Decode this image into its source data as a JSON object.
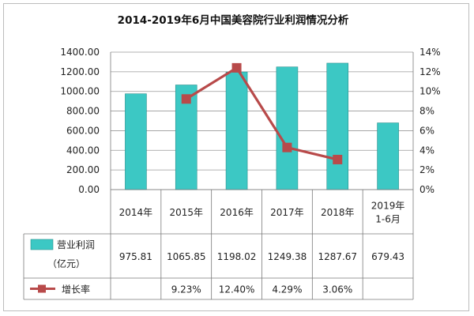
{
  "chart_data": {
    "type": "bar+line",
    "title": "2014-2019年6月中国美容院行业利润情况分析",
    "categories": [
      "2014年",
      "2015年",
      "2016年",
      "2017年",
      "2018年",
      "2019年 1-6月"
    ],
    "category_lines": [
      [
        "2014年"
      ],
      [
        "2015年"
      ],
      [
        "2016年"
      ],
      [
        "2017年"
      ],
      [
        "2018年"
      ],
      [
        "2019年",
        "1-6月"
      ]
    ],
    "series": [
      {
        "name": "营业利润（亿元）",
        "legend_lines": [
          "营业利润",
          "（亿元）"
        ],
        "type": "bar",
        "axis": "left",
        "color": "#3cc8c4",
        "values": [
          975.81,
          1065.85,
          1198.02,
          1249.38,
          1287.67,
          679.43
        ],
        "labels": [
          "975.81",
          "1065.85",
          "1198.02",
          "1249.38",
          "1287.67",
          "679.43"
        ]
      },
      {
        "name": "增长率",
        "legend_lines": [
          "增长率"
        ],
        "type": "line",
        "axis": "right",
        "color": "#b84a4a",
        "values": [
          null,
          9.23,
          12.4,
          4.29,
          3.06,
          null
        ],
        "labels": [
          "",
          "9.23%",
          "12.40%",
          "4.29%",
          "3.06%",
          ""
        ]
      }
    ],
    "y_left": {
      "min": 0,
      "max": 1400,
      "step": 200,
      "tick_labels": [
        "0.00",
        "200.00",
        "400.00",
        "600.00",
        "800.00",
        "1000.00",
        "1200.00",
        "1400.00"
      ]
    },
    "y_right": {
      "min": 0,
      "max": 14,
      "step": 2,
      "tick_labels": [
        "0%",
        "2%",
        "4%",
        "6%",
        "8%",
        "10%",
        "12%",
        "14%"
      ]
    },
    "grid": true,
    "legend": "data-table"
  }
}
